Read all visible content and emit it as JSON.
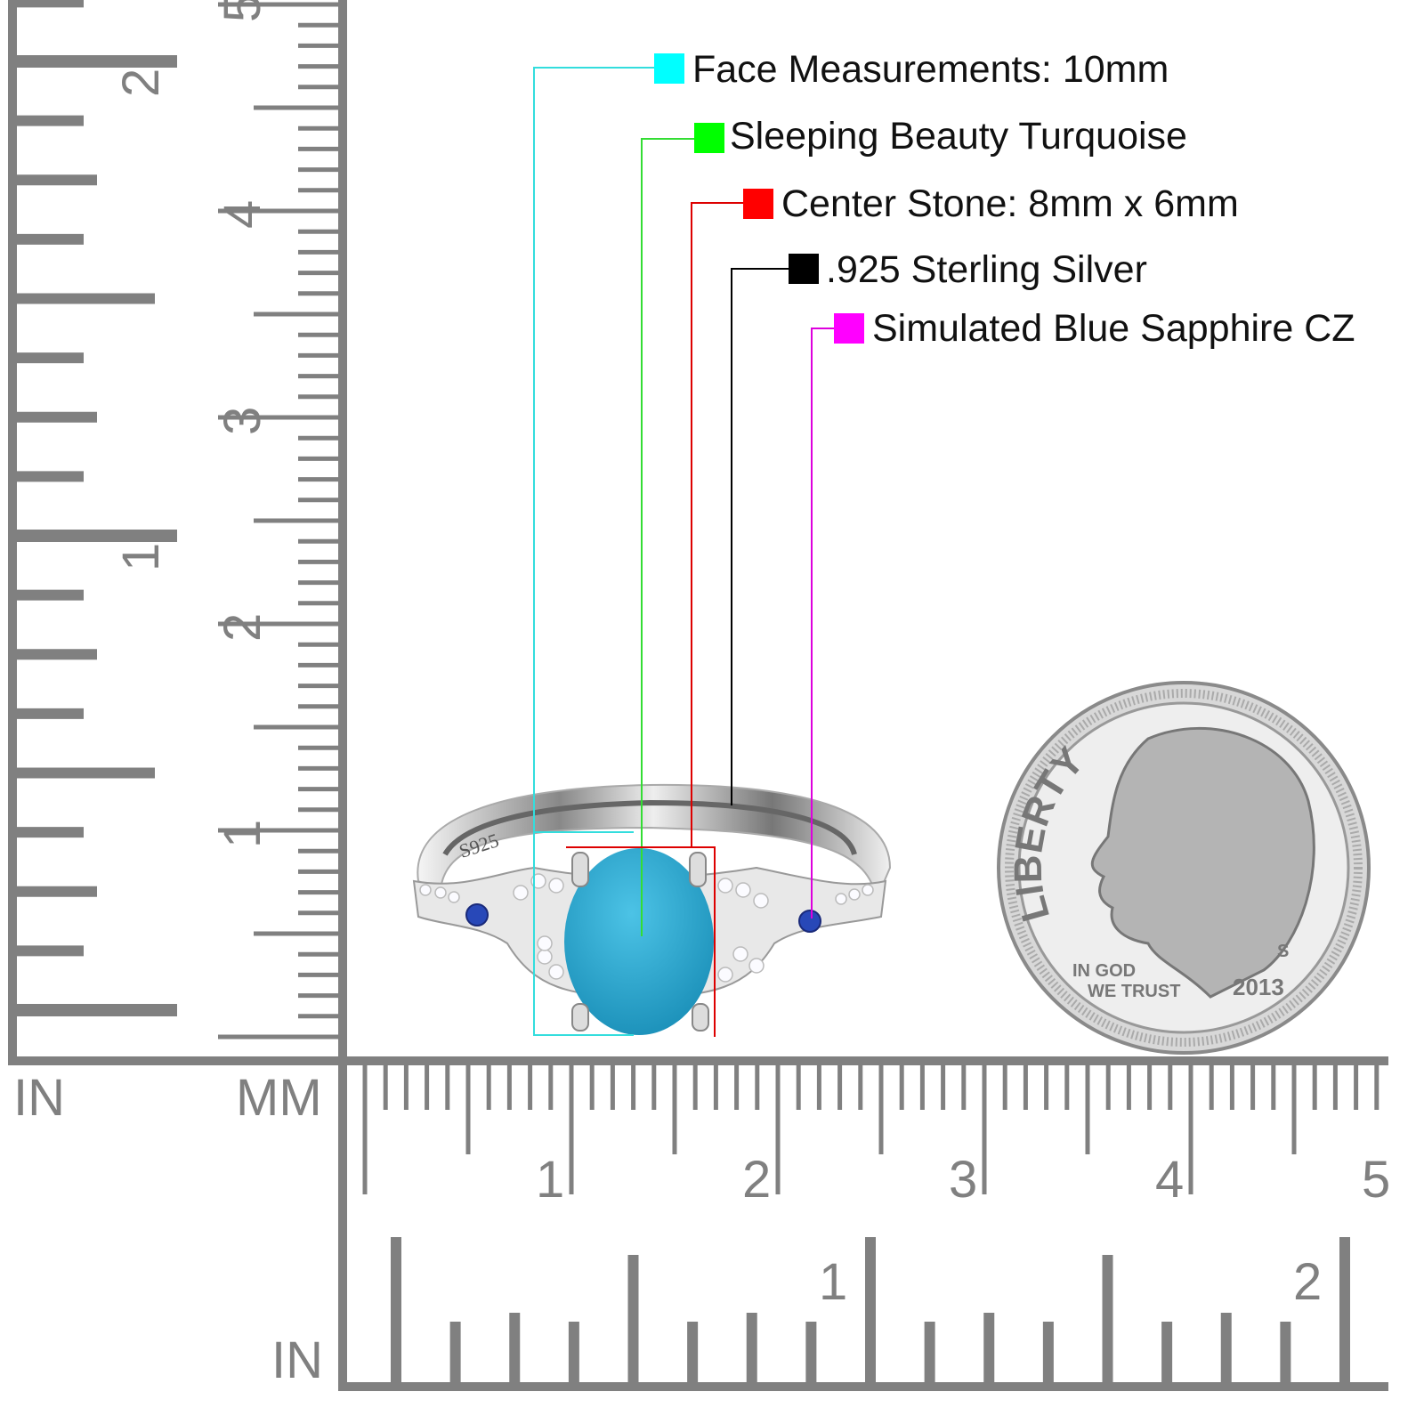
{
  "callouts": [
    {
      "text": "Face Measurements: 10mm",
      "color": "#00ffff",
      "line_color": "#33dddd"
    },
    {
      "text": "Sleeping Beauty Turquoise",
      "color": "#00ff00",
      "line_color": "#33dd33"
    },
    {
      "text": "Center Stone: 8mm x 6mm",
      "color": "#ff0000",
      "line_color": "#dd0000"
    },
    {
      "text": ".925 Sterling Silver",
      "color": "#000000",
      "line_color": "#000000"
    },
    {
      "text": "Simulated Blue Sapphire CZ",
      "color": "#ff00ff",
      "line_color": "#dd00dd"
    }
  ],
  "rulers": {
    "left_unit": "IN",
    "corner_unit": "MM",
    "bottom_unit": "IN",
    "cm_labels": [
      "1",
      "2",
      "3",
      "4",
      "5"
    ],
    "inch_labels": [
      "1",
      "2"
    ],
    "color": "#808080"
  },
  "ring": {
    "stamp": "S925",
    "stone_color": "#2aa8d0",
    "accent_stone_color": "#2848b8"
  },
  "coin": {
    "motto_top": "LIBERTY",
    "motto_1": "IN GOD",
    "motto_2": "WE TRUST",
    "year": "2013",
    "mint": "S"
  }
}
